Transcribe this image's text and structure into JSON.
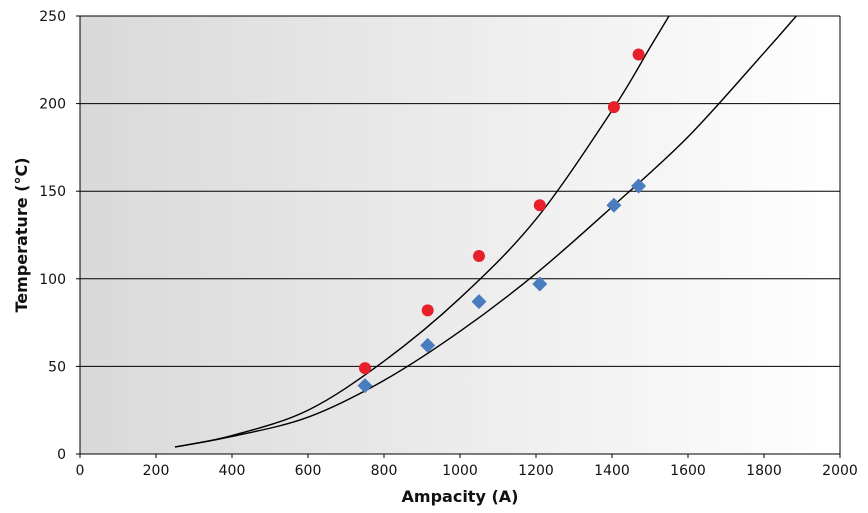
{
  "chart_data": {
    "type": "scatter",
    "title": "",
    "xlabel": "Ampacity (A)",
    "ylabel": "Temperature (°C)",
    "xlim": [
      0,
      2000
    ],
    "ylim": [
      0,
      250
    ],
    "x_ticks": [
      0,
      200,
      400,
      600,
      800,
      1000,
      1200,
      1400,
      1600,
      1800,
      2000
    ],
    "y_ticks": [
      0,
      50,
      100,
      150,
      200,
      250
    ],
    "grid": "horizontal",
    "legend": "none",
    "background": "gradient light-to-dark gray",
    "series": [
      {
        "marker": "circle",
        "color": "#e8202a",
        "points": [
          {
            "x": 750,
            "y": 49
          },
          {
            "x": 915,
            "y": 82
          },
          {
            "x": 1050,
            "y": 113
          },
          {
            "x": 1210,
            "y": 142
          },
          {
            "x": 1405,
            "y": 198
          },
          {
            "x": 1470,
            "y": 228
          }
        ]
      },
      {
        "marker": "diamond",
        "color": "#4a7cc0",
        "points": [
          {
            "x": 750,
            "y": 39
          },
          {
            "x": 915,
            "y": 62
          },
          {
            "x": 1050,
            "y": 87
          },
          {
            "x": 1210,
            "y": 97
          },
          {
            "x": 1405,
            "y": 142
          },
          {
            "x": 1470,
            "y": 153
          }
        ]
      }
    ],
    "trendlines": [
      {
        "color": "#000000",
        "points": [
          {
            "x": 250,
            "y": 4
          },
          {
            "x": 400,
            "y": 10.5
          },
          {
            "x": 600,
            "y": 25
          },
          {
            "x": 800,
            "y": 53
          },
          {
            "x": 1000,
            "y": 89
          },
          {
            "x": 1200,
            "y": 134
          },
          {
            "x": 1400,
            "y": 196
          },
          {
            "x": 1500,
            "y": 232
          },
          {
            "x": 1550,
            "y": 250
          }
        ]
      },
      {
        "color": "#000000",
        "points": [
          {
            "x": 250,
            "y": 4
          },
          {
            "x": 400,
            "y": 10
          },
          {
            "x": 600,
            "y": 21
          },
          {
            "x": 800,
            "y": 42
          },
          {
            "x": 1000,
            "y": 70
          },
          {
            "x": 1200,
            "y": 103
          },
          {
            "x": 1400,
            "y": 141
          },
          {
            "x": 1600,
            "y": 181
          },
          {
            "x": 1800,
            "y": 229
          },
          {
            "x": 1885,
            "y": 250
          }
        ]
      }
    ]
  }
}
